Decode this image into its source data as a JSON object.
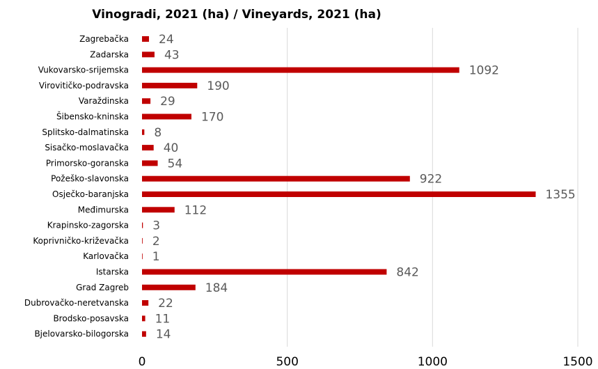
{
  "chart_data": {
    "type": "bar",
    "orientation": "horizontal",
    "title": "Vinogradi, 2021 (ha) / Vineyards, 2021 (ha)",
    "xlabel": "",
    "ylabel": "",
    "categories": [
      "Zagrebačka",
      "Zadarska",
      "Vukovarsko-srijemska",
      "Virovitičko-podravska",
      "Varaždinska",
      "Šibensko-kninska",
      "Splitsko-dalmatinska",
      "Sisačko-moslavačka",
      "Primorsko-goranska",
      "Požeško-slavonska",
      "Osječko-baranjska",
      "Međimurska",
      "Krapinsko-zagorska",
      "Koprivničko-križevačka",
      "Karlovačka",
      "Istarska",
      "Grad Zagreb",
      "Dubrovačko-neretvanska",
      "Brodsko-posavska",
      "Bjelovarsko-bilogorska"
    ],
    "values": [
      24,
      43,
      1092,
      190,
      29,
      170,
      8,
      40,
      54,
      922,
      1355,
      112,
      3,
      2,
      1,
      842,
      184,
      22,
      11,
      14
    ],
    "xlim": [
      0,
      1500
    ],
    "xticks": [
      0,
      500,
      1000,
      1500
    ],
    "grid": true,
    "legend": "none",
    "colors": {
      "bar": "#c00000",
      "grid": "#d9d9d9",
      "value_label": "#595959"
    }
  }
}
